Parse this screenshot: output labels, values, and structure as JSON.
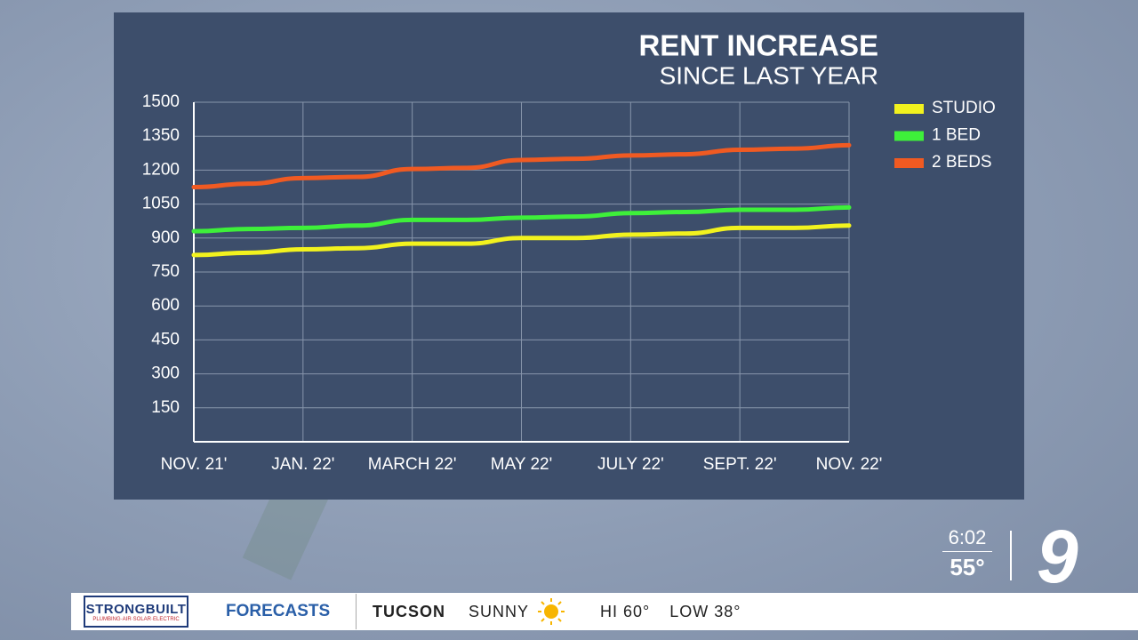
{
  "chart_data": {
    "type": "line",
    "title": "RENT INCREASE",
    "subtitle": "SINCE LAST YEAR",
    "categories": [
      "NOV. 21'",
      null,
      "JAN. 22'",
      null,
      "MARCH 22'",
      null,
      "MAY 22'",
      null,
      "JULY 22'",
      null,
      "SEPT. 22'",
      null,
      "NOV. 22'"
    ],
    "series": [
      {
        "name": "STUDIO",
        "color": "#f2f21e",
        "values": [
          825,
          835,
          850,
          855,
          875,
          875,
          900,
          900,
          915,
          920,
          945,
          945,
          955
        ]
      },
      {
        "name": "1 BED",
        "color": "#3ef03a",
        "values": [
          930,
          940,
          945,
          955,
          980,
          980,
          990,
          995,
          1010,
          1015,
          1025,
          1025,
          1035
        ]
      },
      {
        "name": "2 BEDS",
        "color": "#f05a22",
        "values": [
          1125,
          1140,
          1165,
          1170,
          1205,
          1210,
          1245,
          1250,
          1265,
          1270,
          1290,
          1295,
          1310
        ]
      }
    ],
    "ylim": [
      0,
      1500
    ],
    "yticks": [
      150,
      300,
      450,
      600,
      750,
      900,
      1050,
      1200,
      1350,
      1500
    ],
    "grid": true,
    "legend": "right"
  },
  "ticker": {
    "logo": "STRONGBUILT",
    "logo_sub": "PLUMBING·AIR·SOLAR·ELECTRIC",
    "section": "FORECASTS",
    "city": "TUCSON",
    "condition": "SUNNY",
    "high": "HI 60°",
    "low": "LOW 38°"
  },
  "clock": {
    "time": "6:02",
    "temp": "55°"
  },
  "station": "9"
}
